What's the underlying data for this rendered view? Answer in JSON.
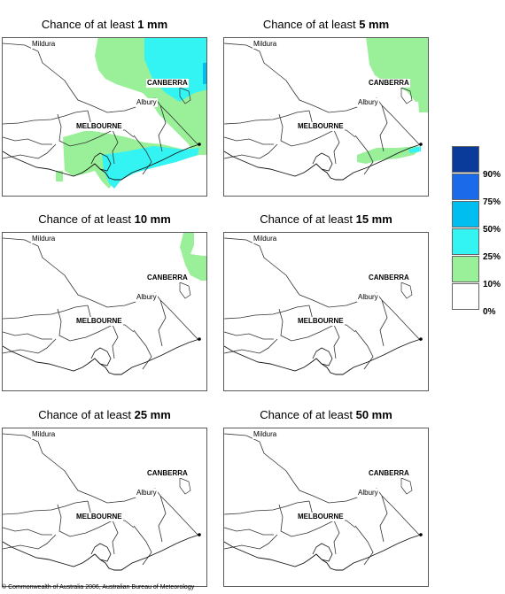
{
  "panels": [
    {
      "title_prefix": "Chance of at least ",
      "amount": "1 mm",
      "key": "p1"
    },
    {
      "title_prefix": "Chance of at least ",
      "amount": "5 mm",
      "key": "p5"
    },
    {
      "title_prefix": "Chance of at least ",
      "amount": "10 mm",
      "key": "p10"
    },
    {
      "title_prefix": "Chance of at least ",
      "amount": "15 mm",
      "key": "p15"
    },
    {
      "title_prefix": "Chance of at least ",
      "amount": "25 mm",
      "key": "p25"
    },
    {
      "title_prefix": "Chance of at least ",
      "amount": "50 mm",
      "key": "p50"
    }
  ],
  "cities": {
    "mildura": "Mildura",
    "canberra": "CANBERRA",
    "albury": "Albury",
    "melbourne": "MELBOURNE"
  },
  "legend": {
    "categories": [
      {
        "label": "90%",
        "color": "#0a3a9a"
      },
      {
        "label": "75%",
        "color": "#1a6aea"
      },
      {
        "label": "50%",
        "color": "#00bef0"
      },
      {
        "label": "25%",
        "color": "#33f3f3"
      },
      {
        "label": "10%",
        "color": "#99f099"
      },
      {
        "label": "0%",
        "color": "#ffffff"
      }
    ]
  },
  "copyright": "© Commonwealth of Australia 2006, Australian Bureau of Meteorology"
}
